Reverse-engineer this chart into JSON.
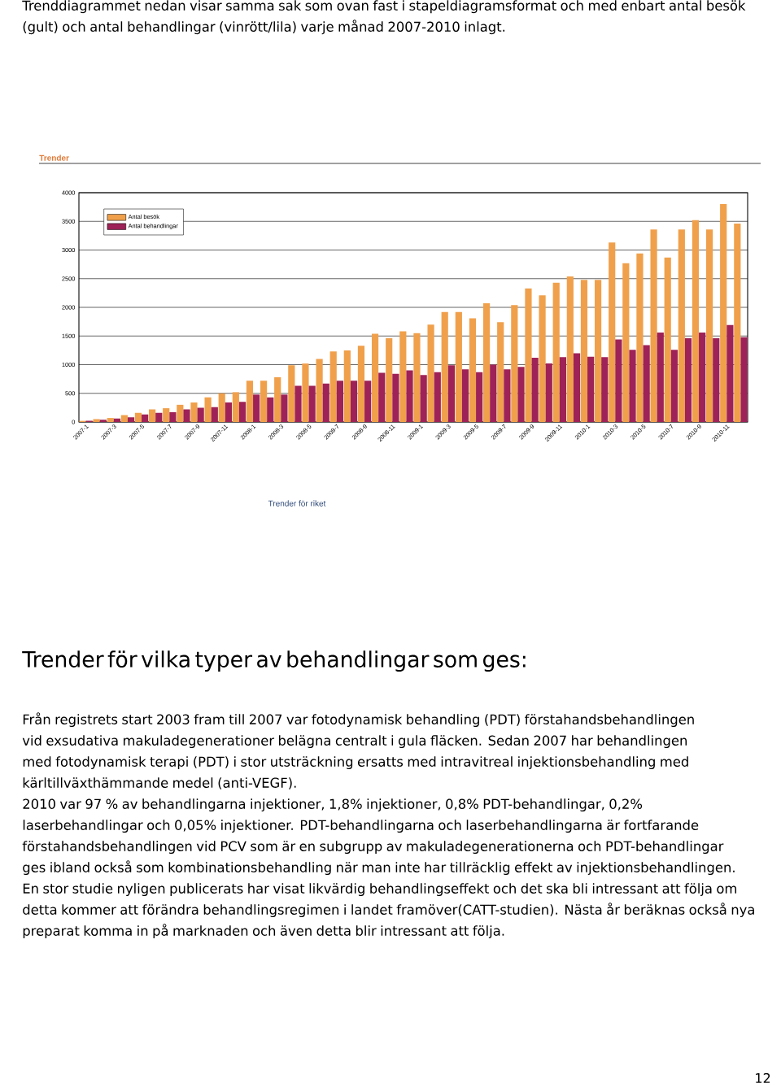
{
  "chart_data": {
    "type": "bar",
    "title": "Trender",
    "annotations": [
      "Trenddiagrammet nedan visar samma sak som ovan fast i stapeldiagramsformat och med enbart antal besök (gult) och antal behandlingar (vinrött/lila) varje månad 2007-2010 inlagt.",
      "Trender för riket",
      "Trender för vilka typer av behandlingar som ges:",
      "Från registrets start 2003 fram till 2007 var fotodynamisk behandling (PDT) förstahandsbehandlingen vid exsudativa makuladegenerationer belägna centralt i gula fläcken. Sedan 2007 har behandlingen med fotodynamisk terapi (PDT) i stor utsträckning ersatts med intravitreal injektionsbehandling med kärltillväxthämmande medel (anti-VEGF).",
      "2010 var 97 % av behandlingarna injektioner, 1,8% injektioner, 0,8% PDT-behandlingar, 0,2% laserbehandlingar och 0,05% injektioner. PDT-behandlingarna och laserbehandlingarna är fortfarande förstahandsbehandlingen vid PCV som är en subgrupp av makuladegenerationerna och PDT-behandlingar ges ibland också som kombinationsbehandling när man inte har tillräcklig effekt av injektionsbehandlingen.",
      "En stor studie nyligen publicerats har visat likvärdig behandlingseffekt och det ska bli intressant att följa om detta kommer att förändra behandlingsregimen i landet framöver(CATT-studien). Nästa år beräknas också nya preparat komma in på marknaden och även detta blir intressant att följa.",
      "12"
    ],
    "categories": [
      "2007-1",
      null,
      "2007-3",
      null,
      "2007-5",
      null,
      "2007-7",
      null,
      "2007-9",
      null,
      "2007-11",
      null,
      "2008-1",
      null,
      "2008-3",
      null,
      "2008-5",
      null,
      "2008-7",
      null,
      "2008-9",
      null,
      "2008-11",
      null,
      "2009-1",
      null,
      "2009-3",
      null,
      "2009-5",
      null,
      "2009-7",
      null,
      "2009-9",
      null,
      "2009-11",
      null,
      "2010-1",
      null,
      "2010-3",
      null,
      "2010-5",
      null,
      "2010-7",
      null,
      "2010-9",
      null,
      "2010-11",
      null
    ],
    "series": [
      {
        "name": "Antal besök",
        "color": "#f0a04b",
        "values": [
          20,
          50,
          70,
          120,
          160,
          220,
          240,
          300,
          340,
          430,
          500,
          520,
          720,
          720,
          780,
          990,
          1020,
          1100,
          1230,
          1250,
          1330,
          1540,
          1460,
          1580,
          1550,
          1700,
          1920,
          1920,
          1810,
          2070,
          1740,
          2040,
          2330,
          2210,
          2430,
          2540,
          2480,
          2480,
          3130,
          2770,
          2940,
          3360,
          2870,
          3360,
          3520,
          3360,
          3800,
          3460
        ]
      },
      {
        "name": "Antal behandlingar",
        "color": "#9e2257",
        "values": [
          20,
          40,
          60,
          80,
          130,
          160,
          170,
          220,
          250,
          260,
          340,
          350,
          480,
          430,
          480,
          630,
          630,
          670,
          720,
          720,
          720,
          860,
          840,
          900,
          820,
          870,
          990,
          920,
          870,
          1000,
          920,
          960,
          1120,
          1020,
          1130,
          1200,
          1140,
          1130,
          1440,
          1260,
          1340,
          1560,
          1260,
          1460,
          1560,
          1460,
          1690,
          1480
        ]
      }
    ],
    "ylim": [
      0,
      4000
    ],
    "yticks": [
      0,
      500,
      1000,
      1500,
      2000,
      2500,
      3000,
      3500,
      4000
    ],
    "grid": "y",
    "legend": "top left"
  }
}
